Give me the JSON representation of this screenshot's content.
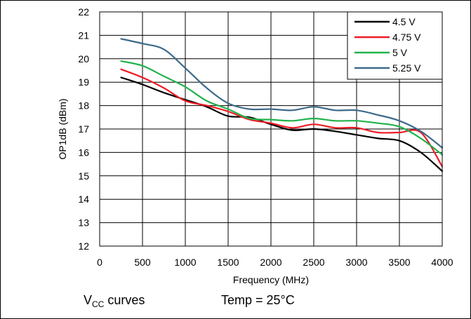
{
  "chart_data": {
    "type": "line",
    "xlabel": "Frequency (MHz)",
    "ylabel": "OP1dB (dBm)",
    "xlim": [
      0,
      4000
    ],
    "ylim": [
      12,
      22
    ],
    "xticks": [
      0,
      500,
      1000,
      1500,
      2000,
      2500,
      3000,
      3500,
      4000
    ],
    "yticks": [
      12,
      13,
      14,
      15,
      16,
      17,
      18,
      19,
      20,
      21,
      22
    ],
    "grid": true,
    "legend_position": "top-right",
    "series": [
      {
        "name": "4.5 V",
        "color": "#000000",
        "points": [
          [
            250,
            19.2
          ],
          [
            500,
            18.9
          ],
          [
            750,
            18.55
          ],
          [
            1000,
            18.25
          ],
          [
            1250,
            17.95
          ],
          [
            1500,
            17.55
          ],
          [
            1750,
            17.5
          ],
          [
            2000,
            17.2
          ],
          [
            2250,
            16.95
          ],
          [
            2500,
            17.0
          ],
          [
            2750,
            16.9
          ],
          [
            3000,
            16.75
          ],
          [
            3250,
            16.6
          ],
          [
            3500,
            16.5
          ],
          [
            3750,
            16.0
          ],
          [
            4000,
            15.2
          ]
        ]
      },
      {
        "name": "4.75 V",
        "color": "#ee1c25",
        "points": [
          [
            250,
            19.55
          ],
          [
            500,
            19.2
          ],
          [
            750,
            18.75
          ],
          [
            1000,
            18.2
          ],
          [
            1250,
            18.0
          ],
          [
            1500,
            17.75
          ],
          [
            1750,
            17.4
          ],
          [
            2000,
            17.25
          ],
          [
            2250,
            17.05
          ],
          [
            2500,
            17.2
          ],
          [
            2750,
            17.05
          ],
          [
            3000,
            17.05
          ],
          [
            3250,
            16.85
          ],
          [
            3500,
            16.85
          ],
          [
            3750,
            16.85
          ],
          [
            4000,
            15.4
          ]
        ]
      },
      {
        "name": "5 V",
        "color": "#22b24c",
        "points": [
          [
            250,
            19.9
          ],
          [
            500,
            19.7
          ],
          [
            750,
            19.25
          ],
          [
            1000,
            18.8
          ],
          [
            1250,
            18.2
          ],
          [
            1500,
            17.85
          ],
          [
            1750,
            17.45
          ],
          [
            2000,
            17.4
          ],
          [
            2250,
            17.35
          ],
          [
            2500,
            17.45
          ],
          [
            2750,
            17.35
          ],
          [
            3000,
            17.35
          ],
          [
            3250,
            17.25
          ],
          [
            3500,
            17.1
          ],
          [
            3750,
            16.6
          ],
          [
            4000,
            15.9
          ]
        ]
      },
      {
        "name": "5.25 V",
        "color": "#3d6a8a",
        "points": [
          [
            250,
            20.85
          ],
          [
            500,
            20.65
          ],
          [
            750,
            20.4
          ],
          [
            1000,
            19.6
          ],
          [
            1250,
            18.75
          ],
          [
            1500,
            18.1
          ],
          [
            1750,
            17.85
          ],
          [
            2000,
            17.85
          ],
          [
            2250,
            17.8
          ],
          [
            2500,
            17.95
          ],
          [
            2750,
            17.8
          ],
          [
            3000,
            17.8
          ],
          [
            3250,
            17.6
          ],
          [
            3500,
            17.35
          ],
          [
            3750,
            16.9
          ],
          [
            4000,
            16.2
          ]
        ]
      }
    ]
  },
  "captions": {
    "vcc_main": "V",
    "vcc_sub": "CC",
    "vcc_rest": " curves",
    "temp": "Temp = 25°C"
  }
}
